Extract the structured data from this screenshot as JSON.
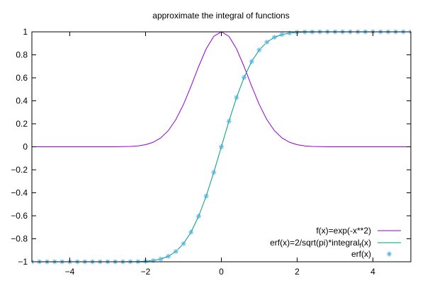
{
  "chart_data": {
    "type": "line",
    "title": "approximate the integral of functions",
    "xlabel": "",
    "ylabel": "",
    "xlim": [
      -5,
      5
    ],
    "ylim": [
      -1,
      1
    ],
    "grid": false,
    "legend_position": "bottom-right",
    "x_ticks": [
      "−4",
      "−2",
      "0",
      "2",
      "4"
    ],
    "x_tick_values": [
      -4,
      -2,
      0,
      2,
      4
    ],
    "y_ticks": [
      "1",
      "0.8",
      "0.6",
      "0.4",
      "0.2",
      "0",
      "−0.2",
      "−0.4",
      "−0.6",
      "−0.8",
      "−1"
    ],
    "y_tick_values": [
      1,
      0.8,
      0.6,
      0.4,
      0.2,
      0,
      -0.2,
      -0.4,
      -0.6,
      -0.8,
      -1
    ],
    "x": [
      -5,
      -4.8,
      -4.6,
      -4.4,
      -4.2,
      -4,
      -3.8,
      -3.6,
      -3.4,
      -3.2,
      -3,
      -2.8,
      -2.6,
      -2.4,
      -2.2,
      -2,
      -1.8,
      -1.6,
      -1.4,
      -1.2,
      -1,
      -0.8,
      -0.6,
      -0.4,
      -0.2,
      0,
      0.2,
      0.4,
      0.6,
      0.8,
      1,
      1.2,
      1.4,
      1.6,
      1.8,
      2,
      2.2,
      2.4,
      2.6,
      2.8,
      3,
      3.2,
      3.4,
      3.6,
      3.8,
      4,
      4.2,
      4.4,
      4.6,
      4.8,
      5
    ],
    "series": [
      {
        "name": "f(x)=exp(-x**2)",
        "style": "line",
        "color": "#9400d3",
        "values": [
          0.0,
          0.0,
          0.0,
          0.0,
          0.0,
          0.0,
          0.0,
          0.0,
          0.0,
          0.0,
          0.0001,
          0.0004,
          0.0012,
          0.0032,
          0.0079,
          0.0183,
          0.0392,
          0.0773,
          0.1409,
          0.2369,
          0.3679,
          0.5273,
          0.6977,
          0.8521,
          0.9608,
          1.0,
          0.9608,
          0.8521,
          0.6977,
          0.5273,
          0.3679,
          0.2369,
          0.1409,
          0.0773,
          0.0392,
          0.0183,
          0.0079,
          0.0032,
          0.0012,
          0.0004,
          0.0001,
          0.0,
          0.0,
          0.0,
          0.0,
          0.0,
          0.0,
          0.0,
          0.0,
          0.0,
          0.0
        ]
      },
      {
        "name": "erf(x)=2/sqrt(pi)*integral",
        "name_subscript": "f",
        "name_suffix": "(x)",
        "style": "line",
        "color": "#009e73",
        "values": [
          -1.0,
          -1.0,
          -1.0,
          -1.0,
          -1.0,
          -1.0,
          -1.0,
          -1.0,
          -1.0,
          -1.0,
          -1.0,
          -0.9999,
          -0.9998,
          -0.9993,
          -0.9981,
          -0.9953,
          -0.9891,
          -0.9763,
          -0.9523,
          -0.9103,
          -0.8427,
          -0.7421,
          -0.6039,
          -0.4284,
          -0.2227,
          0.0,
          0.2227,
          0.4284,
          0.6039,
          0.7421,
          0.8427,
          0.9103,
          0.9523,
          0.9763,
          0.9891,
          0.9953,
          0.9981,
          0.9993,
          0.9998,
          0.9999,
          1.0,
          1.0,
          1.0,
          1.0,
          1.0,
          1.0,
          1.0,
          1.0,
          1.0,
          1.0,
          1.0
        ]
      },
      {
        "name": "erf(x)",
        "style": "points",
        "marker": "asterisk",
        "color": "#56b4e9",
        "values": [
          -1.0,
          -1.0,
          -1.0,
          -1.0,
          -1.0,
          -1.0,
          -1.0,
          -1.0,
          -1.0,
          -1.0,
          -1.0,
          -0.9999,
          -0.9998,
          -0.9993,
          -0.9981,
          -0.9953,
          -0.9891,
          -0.9763,
          -0.9523,
          -0.9103,
          -0.8427,
          -0.7421,
          -0.6039,
          -0.4284,
          -0.2227,
          0.0,
          0.2227,
          0.4284,
          0.6039,
          0.7421,
          0.8427,
          0.9103,
          0.9523,
          0.9763,
          0.9891,
          0.9953,
          0.9981,
          0.9993,
          0.9998,
          0.9999,
          1.0,
          1.0,
          1.0,
          1.0,
          1.0,
          1.0,
          1.0,
          1.0,
          1.0,
          1.0,
          1.0
        ]
      }
    ]
  }
}
